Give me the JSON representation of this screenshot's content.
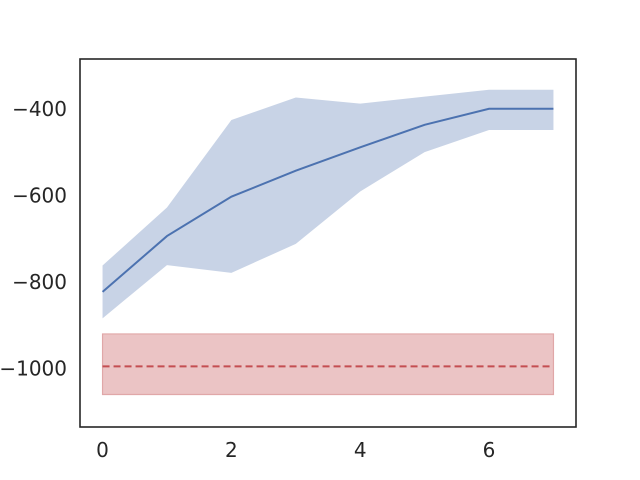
{
  "chart_data": {
    "type": "line",
    "title": "",
    "xlabel": "",
    "ylabel": "",
    "xlim": [
      -0.35,
      7.35
    ],
    "ylim": [
      -1135,
      -285
    ],
    "grid": false,
    "x_ticks": [
      0,
      2,
      4,
      6
    ],
    "y_ticks": [
      -400,
      -600,
      -800,
      -1000
    ],
    "x_tick_labels": [
      "0",
      "2",
      "4",
      "6"
    ],
    "y_tick_labels": [
      "−400",
      "−600",
      "−800",
      "−1000"
    ],
    "series": [
      {
        "style": "solid",
        "color": "#4c72b0",
        "band_color": "#c8d3e6",
        "x": [
          0,
          1,
          2,
          3,
          4,
          5,
          6,
          7
        ],
        "y": [
          -823,
          -694,
          -603,
          -543,
          -489,
          -437,
          -400,
          -400
        ],
        "band_lower": [
          -884,
          -761,
          -779,
          -712,
          -591,
          -500,
          -449,
          -449
        ],
        "band_upper": [
          -762,
          -628,
          -426,
          -374,
          -388,
          -372,
          -356,
          -356
        ]
      },
      {
        "style": "dashed",
        "color": "#c44e52",
        "band_color": "#ebc4c5",
        "band_edge_color": "#e0a7a8",
        "x": [
          0,
          7
        ],
        "y": [
          -995,
          -995
        ],
        "band_lower": [
          -1060,
          -1060
        ],
        "band_upper": [
          -920,
          -920
        ]
      }
    ]
  }
}
